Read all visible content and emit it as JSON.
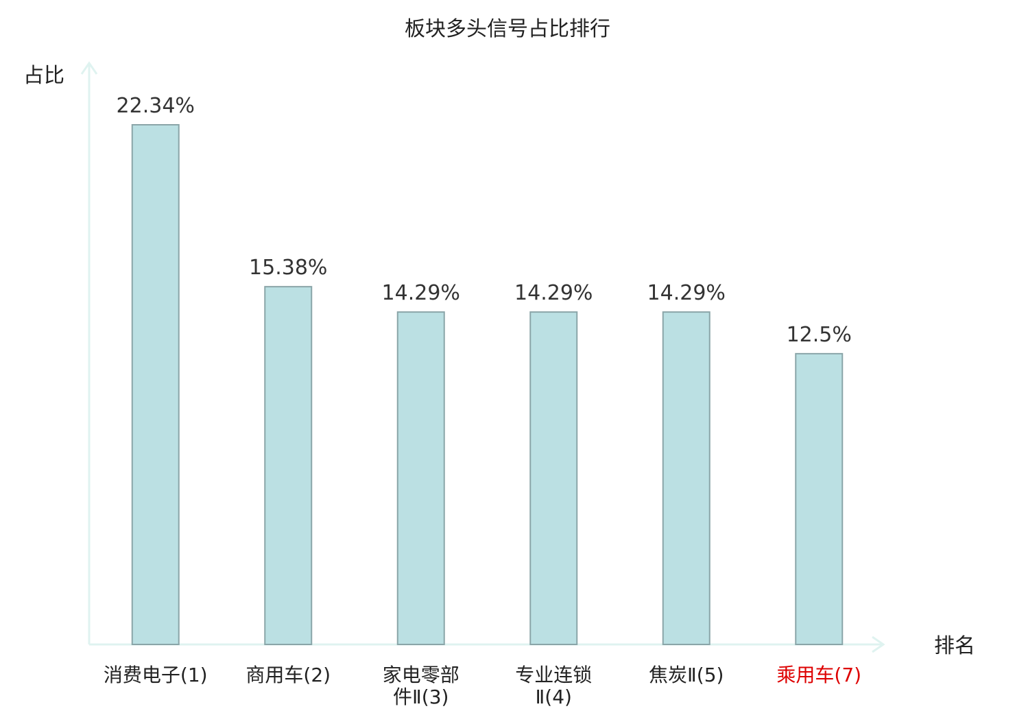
{
  "colors": {
    "bar_fill": "#bbe0e3",
    "bar_stroke": "#8aa5a8",
    "axis": "#dff3f0",
    "text": "#222222",
    "value_text": "#333333",
    "highlight": "#dd0000"
  },
  "chart_data": {
    "type": "bar",
    "title": "板块多头信号占比排行",
    "xlabel": "排名",
    "ylabel": "占比",
    "grid": false,
    "legend": "none",
    "ylim": [
      0,
      24.5
    ],
    "categories": [
      [
        "消费电子(1)"
      ],
      [
        "商用车(2)"
      ],
      [
        "家电零部",
        "件Ⅱ(3)"
      ],
      [
        "专业连锁",
        "Ⅱ(4)"
      ],
      [
        "焦炭Ⅱ(5)"
      ],
      [
        "乘用车(7)"
      ]
    ],
    "values": [
      22.34,
      15.38,
      14.29,
      14.29,
      14.29,
      12.5
    ],
    "value_labels": [
      "22.34%",
      "15.38%",
      "14.29%",
      "14.29%",
      "14.29%",
      "12.5%"
    ],
    "highlighted_category_index": 5
  }
}
